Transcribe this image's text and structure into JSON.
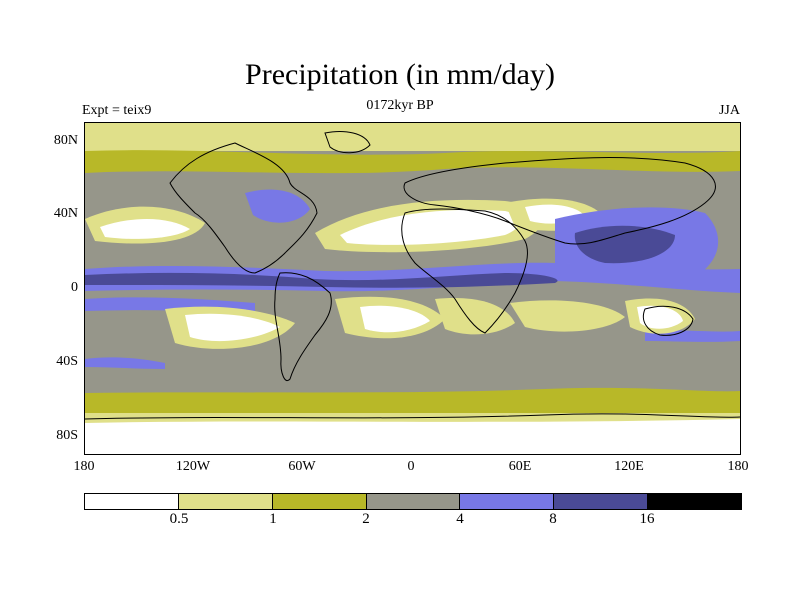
{
  "title": "Precipitation (in mm/day)",
  "subtitle": "0172kyr BP",
  "left_label": "Expt = teix9",
  "right_label": "JJA",
  "axes": {
    "lat_ticks": [
      "80N",
      "40N",
      "0",
      "40S",
      "80S"
    ],
    "lon_ticks": [
      "180",
      "120W",
      "60W",
      "0",
      "60E",
      "120E",
      "180"
    ]
  },
  "colorbar": {
    "levels": [
      "0.5",
      "1",
      "2",
      "4",
      "8",
      "16"
    ],
    "colors": [
      "#ffffff",
      "#e0e08a",
      "#b8b828",
      "#96968a",
      "#7878e6",
      "#4a4a96",
      "#000000"
    ]
  },
  "map": {
    "type": "filled-contour",
    "variable": "precipitation",
    "units": "mm/day",
    "lon_range": [
      -180,
      180
    ],
    "lat_range": [
      -90,
      90
    ],
    "projection": "cylindrical-equidistant"
  }
}
